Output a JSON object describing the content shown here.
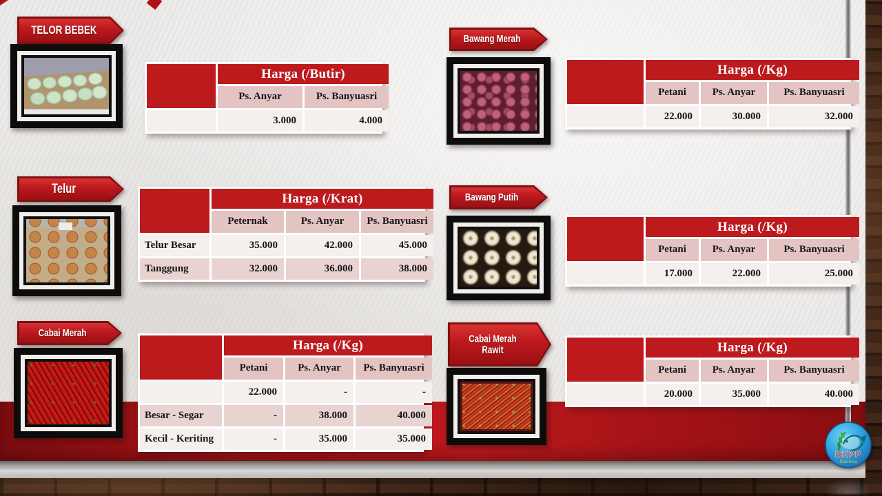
{
  "slide_title": "",
  "colors": {
    "accent_red": "#bd1a1e",
    "banner_red": "#bc181d",
    "banner_border": "#7e1012",
    "band_red": "#9c1114",
    "subheader_pink": "#e3c4c3",
    "row_light": "#f5efed",
    "row_dark": "#e9d3d1",
    "slide_bg": "#ebe9e7",
    "header_text": "#ffffff",
    "cell_text": "#161616"
  },
  "sections": [
    {
      "id": "telor-bebek",
      "banner": "TELOR BEBEK",
      "photo": "duck-eggs-photo",
      "table": {
        "title": "Harga (/Butir)",
        "columns": [
          "Ps. Anyar",
          "Ps. Banyuasri"
        ],
        "rows": [
          {
            "label": "",
            "values": [
              "3.000",
              "4.000"
            ]
          }
        ]
      }
    },
    {
      "id": "telur",
      "banner": "Telur",
      "photo": "chicken-eggs-photo",
      "table": {
        "title": "Harga (/Krat)",
        "columns": [
          "Peternak",
          "Ps. Anyar",
          "Ps. Banyuasri"
        ],
        "rows": [
          {
            "label": "Telur Besar",
            "values": [
              "35.000",
              "42.000",
              "45.000"
            ]
          },
          {
            "label": "Tanggung",
            "values": [
              "32.000",
              "36.000",
              "38.000"
            ]
          }
        ]
      }
    },
    {
      "id": "cabai-merah",
      "banner": "Cabai Merah",
      "photo": "red-chilies-photo",
      "table": {
        "title": "Harga (/Kg)",
        "columns": [
          "Petani",
          "Ps. Anyar",
          "Ps. Banyuasri"
        ],
        "rows": [
          {
            "label": "",
            "values": [
              "22.000",
              "-",
              "-"
            ]
          },
          {
            "label": "Besar - Segar",
            "values": [
              "-",
              "38.000",
              "40.000"
            ]
          },
          {
            "label": "Kecil - Keriting",
            "values": [
              "-",
              "35.000",
              "35.000"
            ]
          }
        ]
      }
    },
    {
      "id": "bawang-merah",
      "banner": "Bawang Merah",
      "photo": "shallots-photo",
      "table": {
        "title": "Harga (/Kg)",
        "columns": [
          "Petani",
          "Ps. Anyar",
          "Ps. Banyuasri"
        ],
        "rows": [
          {
            "label": "",
            "values": [
              "22.000",
              "30.000",
              "32.000"
            ]
          }
        ]
      }
    },
    {
      "id": "bawang-putih",
      "banner": "Bawang Putih",
      "photo": "garlic-photo",
      "table": {
        "title": "Harga (/Kg)",
        "columns": [
          "Petani",
          "Ps. Anyar",
          "Ps. Banyuasri"
        ],
        "rows": [
          {
            "label": "",
            "values": [
              "17.000",
              "22.000",
              "25.000"
            ]
          }
        ]
      }
    },
    {
      "id": "cabai-merah-rawit",
      "banner": "Cabai Merah Rawit",
      "photo": "rawit-chilies-photo",
      "table": {
        "title": "Harga (/Kg)",
        "columns": [
          "Petani",
          "Ps. Anyar",
          "Ps. Banyuasri"
        ],
        "rows": [
          {
            "label": "",
            "values": [
              "20.000",
              "35.000",
              "40.000"
            ]
          }
        ]
      }
    }
  ],
  "logo": {
    "text": "DKPP",
    "subtext": "Buleleng"
  }
}
